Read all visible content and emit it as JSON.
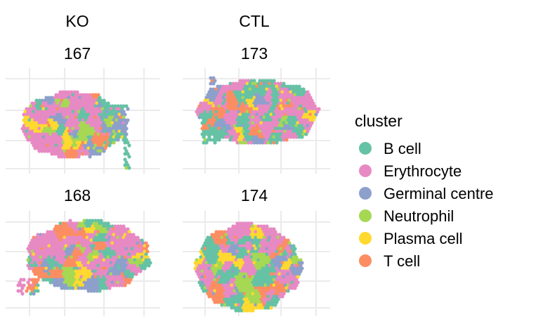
{
  "chart_data": {
    "type": "scatter",
    "column_labels": [
      "KO",
      "CTL"
    ],
    "legend": {
      "title": "cluster",
      "position": "right",
      "entries": [
        {
          "name": "B cell",
          "color": "#66C2A5"
        },
        {
          "name": "Erythrocyte",
          "color": "#E78AC3"
        },
        {
          "name": "Germinal centre",
          "color": "#8DA0CB"
        },
        {
          "name": "Neutrophil",
          "color": "#A6D854"
        },
        {
          "name": "Plasma cell",
          "color": "#FFD92F"
        },
        {
          "name": "T cell",
          "color": "#FC8D62"
        }
      ]
    },
    "grid": true,
    "panels": [
      {
        "title": "167",
        "column": "KO",
        "row": 1
      },
      {
        "title": "173",
        "column": "CTL",
        "row": 1
      },
      {
        "title": "168",
        "column": "KO",
        "row": 2
      },
      {
        "title": "174",
        "column": "CTL",
        "row": 2
      }
    ]
  }
}
